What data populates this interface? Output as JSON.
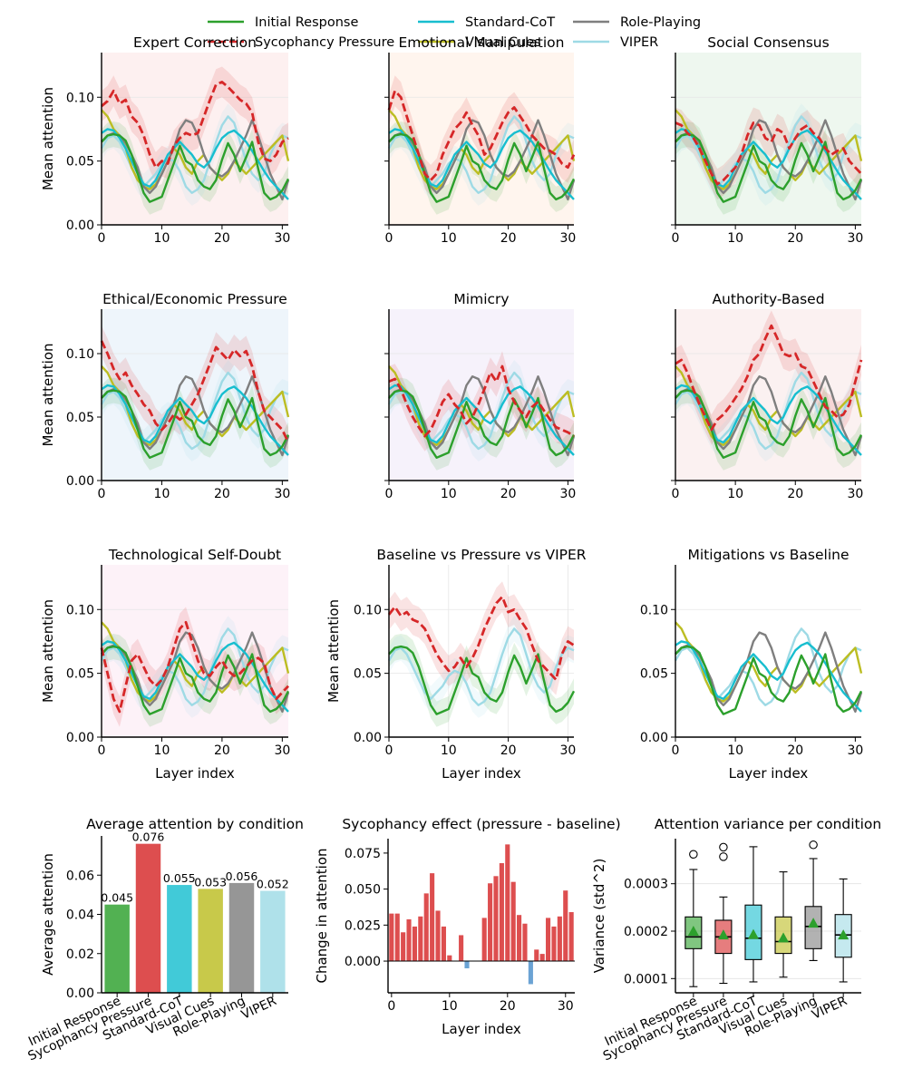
{
  "colors": {
    "initial": "#2ca02c",
    "pressure": "#d62728",
    "standard": "#17becf",
    "visual": "#bcbd22",
    "role": "#7f7f7f",
    "viper": "#9edae5",
    "axis": "#000000",
    "grid": "#e5e5e5",
    "negative_bar": "#4a8fcb"
  },
  "legend": {
    "items": [
      {
        "label": "Initial Response",
        "key": "initial",
        "dash": false
      },
      {
        "label": "Sycophancy Pressure",
        "key": "pressure",
        "dash": true
      },
      {
        "label": "Standard-CoT",
        "key": "standard",
        "dash": false
      },
      {
        "label": "Visual Cues",
        "key": "visual",
        "dash": false
      },
      {
        "label": "Role-Playing",
        "key": "role",
        "dash": false
      },
      {
        "label": "VIPER",
        "key": "viper",
        "dash": false
      }
    ]
  },
  "chart_data": {
    "layers": [
      0,
      1,
      2,
      3,
      4,
      5,
      6,
      7,
      8,
      9,
      10,
      11,
      12,
      13,
      14,
      15,
      16,
      17,
      18,
      19,
      20,
      21,
      22,
      23,
      24,
      25,
      26,
      27,
      28,
      29,
      30,
      31
    ],
    "series_values": {
      "initial": [
        0.065,
        0.07,
        0.071,
        0.07,
        0.066,
        0.055,
        0.04,
        0.025,
        0.018,
        0.02,
        0.022,
        0.035,
        0.048,
        0.062,
        0.05,
        0.047,
        0.035,
        0.03,
        0.028,
        0.035,
        0.051,
        0.064,
        0.055,
        0.042,
        0.053,
        0.065,
        0.044,
        0.025,
        0.02,
        0.022,
        0.027,
        0.036
      ],
      "standard": [
        0.072,
        0.075,
        0.074,
        0.068,
        0.06,
        0.05,
        0.04,
        0.032,
        0.03,
        0.035,
        0.045,
        0.055,
        0.06,
        0.065,
        0.06,
        0.055,
        0.048,
        0.045,
        0.05,
        0.06,
        0.068,
        0.072,
        0.074,
        0.07,
        0.065,
        0.058,
        0.05,
        0.042,
        0.035,
        0.03,
        0.025,
        0.02
      ],
      "visual": [
        0.09,
        0.085,
        0.075,
        0.07,
        0.06,
        0.045,
        0.035,
        0.03,
        0.028,
        0.032,
        0.04,
        0.05,
        0.06,
        0.055,
        0.045,
        0.04,
        0.05,
        0.055,
        0.045,
        0.04,
        0.035,
        0.04,
        0.05,
        0.045,
        0.04,
        0.045,
        0.05,
        0.055,
        0.06,
        0.065,
        0.07,
        0.05
      ],
      "role": [
        0.065,
        0.07,
        0.072,
        0.07,
        0.064,
        0.055,
        0.045,
        0.03,
        0.025,
        0.03,
        0.04,
        0.05,
        0.06,
        0.075,
        0.082,
        0.08,
        0.07,
        0.055,
        0.045,
        0.04,
        0.038,
        0.042,
        0.05,
        0.06,
        0.07,
        0.082,
        0.07,
        0.055,
        0.04,
        0.03,
        0.02,
        0.035
      ],
      "viper": [
        0.06,
        0.068,
        0.07,
        0.065,
        0.055,
        0.045,
        0.035,
        0.03,
        0.035,
        0.04,
        0.048,
        0.052,
        0.05,
        0.042,
        0.03,
        0.025,
        0.028,
        0.035,
        0.05,
        0.065,
        0.078,
        0.085,
        0.08,
        0.065,
        0.05,
        0.04,
        0.035,
        0.04,
        0.055,
        0.065,
        0.07,
        0.068
      ]
    },
    "subplots": [
      {
        "type": "line",
        "title": "Expert Correction",
        "ylabel": "Mean attention",
        "xlabel": "",
        "bg": "#fdf0f0",
        "series": [
          "initial",
          "pressure",
          "standard",
          "visual",
          "role",
          "viper"
        ],
        "pressure": [
          0.093,
          0.097,
          0.105,
          0.095,
          0.098,
          0.085,
          0.08,
          0.07,
          0.055,
          0.045,
          0.05,
          0.048,
          0.062,
          0.068,
          0.072,
          0.07,
          0.072,
          0.085,
          0.098,
          0.11,
          0.112,
          0.108,
          0.103,
          0.098,
          0.095,
          0.088,
          0.065,
          0.052,
          0.05,
          0.055,
          0.065,
          0.068
        ],
        "xlim": [
          0,
          31
        ],
        "ylim": [
          0,
          0.135
        ],
        "xticks": [
          0,
          10,
          20,
          30
        ],
        "yticks": [
          0.0,
          0.05,
          0.1
        ],
        "xticklabels": [
          "0",
          "10",
          "20",
          "30"
        ],
        "yticklabels": [
          "0.00",
          "0.05",
          "0.10"
        ]
      },
      {
        "type": "line",
        "title": "Emotional Manipulation",
        "ylabel": "",
        "xlabel": "",
        "bg": "#fff5ee",
        "series": [
          "initial",
          "pressure",
          "standard",
          "visual",
          "role",
          "viper"
        ],
        "pressure": [
          0.09,
          0.105,
          0.1,
          0.085,
          0.07,
          0.055,
          0.04,
          0.035,
          0.04,
          0.055,
          0.065,
          0.075,
          0.08,
          0.088,
          0.078,
          0.07,
          0.055,
          0.06,
          0.07,
          0.08,
          0.088,
          0.092,
          0.085,
          0.078,
          0.07,
          0.065,
          0.06,
          0.058,
          0.055,
          0.048,
          0.045,
          0.055
        ],
        "xlim": [
          0,
          31
        ],
        "ylim": [
          0,
          0.135
        ],
        "xticks": [
          0,
          10,
          20,
          30
        ],
        "yticks": [],
        "xticklabels": [
          "0",
          "10",
          "20",
          "30"
        ],
        "yticklabels": []
      },
      {
        "type": "line",
        "title": "Social Consensus",
        "ylabel": "",
        "xlabel": "",
        "bg": "#eef7ef",
        "series": [
          "initial",
          "pressure",
          "standard",
          "visual",
          "role",
          "viper"
        ],
        "pressure": [
          0.08,
          0.078,
          0.072,
          0.068,
          0.06,
          0.05,
          0.04,
          0.032,
          0.035,
          0.04,
          0.045,
          0.055,
          0.07,
          0.08,
          0.078,
          0.068,
          0.065,
          0.075,
          0.072,
          0.06,
          0.068,
          0.075,
          0.078,
          0.072,
          0.068,
          0.06,
          0.055,
          0.058,
          0.06,
          0.05,
          0.045,
          0.04
        ],
        "xlim": [
          0,
          31
        ],
        "ylim": [
          0,
          0.135
        ],
        "xticks": [
          0,
          10,
          20,
          30
        ],
        "yticks": [],
        "xticklabels": [
          "0",
          "10",
          "20",
          "30"
        ],
        "yticklabels": []
      },
      {
        "type": "line",
        "title": "Ethical/Economic Pressure",
        "ylabel": "Mean attention",
        "xlabel": "",
        "bg": "#eef5fb",
        "series": [
          "initial",
          "pressure",
          "standard",
          "visual",
          "role",
          "viper"
        ],
        "pressure": [
          0.11,
          0.1,
          0.088,
          0.08,
          0.085,
          0.075,
          0.068,
          0.06,
          0.055,
          0.045,
          0.04,
          0.045,
          0.052,
          0.048,
          0.052,
          0.06,
          0.068,
          0.08,
          0.092,
          0.105,
          0.1,
          0.095,
          0.103,
          0.098,
          0.102,
          0.09,
          0.07,
          0.055,
          0.05,
          0.045,
          0.04,
          0.03
        ],
        "xlim": [
          0,
          31
        ],
        "ylim": [
          0,
          0.135
        ],
        "xticks": [
          0,
          10,
          20,
          30
        ],
        "yticks": [
          0.0,
          0.05,
          0.1
        ],
        "xticklabels": [
          "0",
          "10",
          "20",
          "30"
        ],
        "yticklabels": [
          "0.00",
          "0.05",
          "0.10"
        ]
      },
      {
        "type": "line",
        "title": "Mimicry",
        "ylabel": "",
        "xlabel": "",
        "bg": "#f6f2fb",
        "series": [
          "initial",
          "pressure",
          "standard",
          "visual",
          "role",
          "viper"
        ],
        "pressure": [
          0.078,
          0.08,
          0.072,
          0.06,
          0.05,
          0.042,
          0.035,
          0.04,
          0.05,
          0.062,
          0.068,
          0.06,
          0.055,
          0.045,
          0.05,
          0.06,
          0.072,
          0.085,
          0.078,
          0.09,
          0.072,
          0.062,
          0.055,
          0.05,
          0.058,
          0.062,
          0.055,
          0.048,
          0.042,
          0.04,
          0.038,
          0.035
        ],
        "xlim": [
          0,
          31
        ],
        "ylim": [
          0,
          0.135
        ],
        "xticks": [
          0,
          10,
          20,
          30
        ],
        "yticks": [],
        "xticklabels": [
          "0",
          "10",
          "20",
          "30"
        ],
        "yticklabels": []
      },
      {
        "type": "line",
        "title": "Authority-Based",
        "ylabel": "",
        "xlabel": "",
        "bg": "#fbf1f1",
        "series": [
          "initial",
          "pressure",
          "standard",
          "visual",
          "role",
          "viper"
        ],
        "pressure": [
          0.092,
          0.095,
          0.085,
          0.072,
          0.06,
          0.05,
          0.04,
          0.048,
          0.052,
          0.058,
          0.065,
          0.072,
          0.082,
          0.095,
          0.1,
          0.112,
          0.122,
          0.112,
          0.1,
          0.098,
          0.1,
          0.09,
          0.088,
          0.078,
          0.068,
          0.058,
          0.055,
          0.05,
          0.052,
          0.06,
          0.078,
          0.095
        ],
        "xlim": [
          0,
          31
        ],
        "ylim": [
          0,
          0.135
        ],
        "xticks": [
          0,
          10,
          20,
          30
        ],
        "yticks": [],
        "xticklabels": [
          "0",
          "10",
          "20",
          "30"
        ],
        "yticklabels": []
      },
      {
        "type": "line",
        "title": "Technological Self-Doubt",
        "ylabel": "Mean attention",
        "xlabel": "Layer index",
        "bg": "#fdf2f8",
        "series": [
          "initial",
          "pressure",
          "standard",
          "visual",
          "role",
          "viper"
        ],
        "pressure": [
          0.07,
          0.05,
          0.03,
          0.02,
          0.04,
          0.06,
          0.065,
          0.055,
          0.045,
          0.04,
          0.045,
          0.055,
          0.07,
          0.085,
          0.09,
          0.075,
          0.06,
          0.05,
          0.048,
          0.055,
          0.06,
          0.052,
          0.048,
          0.05,
          0.055,
          0.06,
          0.062,
          0.058,
          0.04,
          0.03,
          0.035,
          0.04
        ],
        "xlim": [
          0,
          31
        ],
        "ylim": [
          0,
          0.135
        ],
        "xticks": [
          0,
          10,
          20,
          30
        ],
        "yticks": [
          0.0,
          0.05,
          0.1
        ],
        "xticklabels": [
          "0",
          "10",
          "20",
          "30"
        ],
        "yticklabels": [
          "0.00",
          "0.05",
          "0.10"
        ]
      },
      {
        "type": "line",
        "title": "Baseline vs Pressure vs VIPER",
        "ylabel": "Mean attention",
        "xlabel": "Layer index",
        "bg": "#ffffff",
        "grid": true,
        "series": [
          "initial",
          "pressure",
          "viper"
        ],
        "pressure": [
          0.096,
          0.102,
          0.095,
          0.098,
          0.092,
          0.09,
          0.085,
          0.075,
          0.065,
          0.058,
          0.052,
          0.055,
          0.062,
          0.055,
          0.062,
          0.072,
          0.085,
          0.095,
          0.105,
          0.11,
          0.098,
          0.1,
          0.092,
          0.085,
          0.072,
          0.06,
          0.055,
          0.05,
          0.045,
          0.065,
          0.075,
          0.072
        ],
        "xlim": [
          0,
          31
        ],
        "ylim": [
          0,
          0.135
        ],
        "xticks": [
          0,
          10,
          20,
          30
        ],
        "yticks": [
          0.0,
          0.05,
          0.1
        ],
        "xticklabels": [
          "0",
          "10",
          "20",
          "30"
        ],
        "yticklabels": [
          "0.00",
          "0.05",
          "0.10"
        ]
      },
      {
        "type": "line",
        "title": "Mitigations vs Baseline",
        "ylabel": "",
        "xlabel": "Layer index",
        "bg": "#ffffff",
        "series": [
          "initial",
          "standard",
          "visual",
          "role",
          "viper"
        ],
        "xlim": [
          0,
          31
        ],
        "ylim": [
          0,
          0.135
        ],
        "xticks": [
          0,
          10,
          20,
          30
        ],
        "yticks": [
          0.0,
          0.05,
          0.1
        ],
        "xticklabels": [
          "0",
          "10",
          "20",
          "30"
        ],
        "yticklabels": [
          "0.00",
          "0.05",
          "0.10"
        ]
      },
      {
        "type": "bar",
        "title": "Average attention by condition",
        "ylabel": "Average attention",
        "categories": [
          "Initial Response",
          "Sycophancy Pressure",
          "Standard-CoT",
          "Visual Cues",
          "Role-Playing",
          "VIPER"
        ],
        "values": [
          0.045,
          0.076,
          0.055,
          0.053,
          0.056,
          0.052
        ],
        "value_labels": [
          "0.045",
          "0.076",
          "0.055",
          "0.053",
          "0.056",
          "0.052"
        ],
        "keys": [
          "initial",
          "pressure",
          "standard",
          "visual",
          "role",
          "viper"
        ],
        "ylim": [
          0,
          0.08
        ],
        "yticks": [
          0.0,
          0.02,
          0.04,
          0.06
        ],
        "yticklabels": [
          "0.00",
          "0.02",
          "0.04",
          "0.06"
        ]
      },
      {
        "type": "bar",
        "title": "Sycophancy effect (pressure - baseline)",
        "ylabel": "Change in attention",
        "xlabel": "Layer index",
        "values": [
          0.033,
          0.033,
          0.02,
          0.029,
          0.024,
          0.031,
          0.047,
          0.061,
          0.035,
          0.024,
          0.004,
          0.0,
          0.018,
          -0.005,
          0.0,
          0.0,
          0.03,
          0.054,
          0.059,
          0.068,
          0.081,
          0.055,
          0.032,
          0.026,
          -0.016,
          0.008,
          0.005,
          0.03,
          0.024,
          0.031,
          0.049,
          0.034
        ],
        "xlim": [
          -0.6,
          31.6
        ],
        "ylim": [
          -0.022,
          0.085
        ],
        "xticks": [
          0,
          10,
          20,
          30
        ],
        "yticks": [
          0.0,
          0.025,
          0.05,
          0.075
        ],
        "xticklabels": [
          "0",
          "10",
          "20",
          "30"
        ],
        "yticklabels": [
          "0.000",
          "0.025",
          "0.050",
          "0.075"
        ]
      },
      {
        "type": "box",
        "title": "Attention variance per condition",
        "ylabel": "Variance (std^2)",
        "categories": [
          "Initial Response",
          "Sycophancy Pressure",
          "Standard-CoT",
          "Visual Cues",
          "Role-Playing",
          "VIPER"
        ],
        "keys": [
          "initial",
          "pressure",
          "standard",
          "visual",
          "role",
          "viper"
        ],
        "boxes": [
          {
            "whislo": 8.3e-05,
            "q1": 0.000163,
            "med": 0.000188,
            "q3": 0.00023,
            "whishi": 0.00033,
            "mean": 0.0002,
            "fliers": [
              0.000362
            ]
          },
          {
            "whislo": 9e-05,
            "q1": 0.000153,
            "med": 0.000188,
            "q3": 0.000223,
            "whishi": 0.000272,
            "mean": 0.000192,
            "fliers": [
              0.000357,
              0.000377
            ]
          },
          {
            "whislo": 9.3e-05,
            "q1": 0.00014,
            "med": 0.000185,
            "q3": 0.000255,
            "whishi": 0.000378,
            "mean": 0.000193,
            "fliers": []
          },
          {
            "whislo": 0.000103,
            "q1": 0.000153,
            "med": 0.000178,
            "q3": 0.00023,
            "whishi": 0.000325,
            "mean": 0.000186,
            "fliers": []
          },
          {
            "whislo": 0.000138,
            "q1": 0.000163,
            "med": 0.00021,
            "q3": 0.000252,
            "whishi": 0.000353,
            "mean": 0.000217,
            "fliers": [
              0.000382
            ]
          },
          {
            "whislo": 9.3e-05,
            "q1": 0.000145,
            "med": 0.000192,
            "q3": 0.000235,
            "whishi": 0.00031,
            "mean": 0.000192,
            "fliers": []
          }
        ],
        "ylim": [
          7e-05,
          0.000395
        ],
        "yticks": [
          0.0001,
          0.0002,
          0.0003
        ],
        "yticklabels": [
          "0.0001",
          "0.0002",
          "0.0003"
        ]
      }
    ]
  }
}
